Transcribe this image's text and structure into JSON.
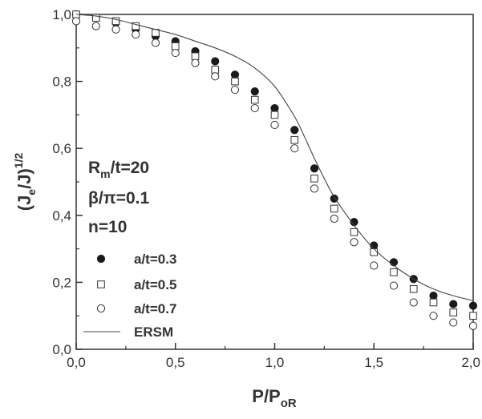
{
  "chart_data": {
    "type": "scatter",
    "xlim": [
      0,
      2
    ],
    "ylim": [
      0,
      1
    ],
    "grid": false,
    "legend_placement": "bottom-left",
    "x_ticks": [
      "0,0",
      "0,5",
      "1,0",
      "1,5",
      "2,0"
    ],
    "y_ticks": [
      "0,0",
      "0,2",
      "0,4",
      "0,6",
      "0,8",
      "1,0"
    ],
    "xlabel": {
      "main": "P/P",
      "sub": "oR"
    },
    "ylabel": {
      "main": "(J",
      "sub1": "e",
      "mid": "/J)",
      "sup": "1/2"
    },
    "annotations": {
      "line1": {
        "main": "R",
        "sub": "m",
        "rest": "/t=20"
      },
      "line2": "β/π=0.1",
      "line3": "n=10"
    },
    "series": [
      {
        "name": "a/t=0.3",
        "marker": "filled-circle",
        "x": [
          0.0,
          0.1,
          0.2,
          0.3,
          0.4,
          0.5,
          0.6,
          0.7,
          0.8,
          0.9,
          1.0,
          1.1,
          1.2,
          1.3,
          1.4,
          1.5,
          1.6,
          1.7,
          1.8,
          1.9,
          2.0
        ],
        "y": [
          1.0,
          0.99,
          0.975,
          0.955,
          0.935,
          0.92,
          0.89,
          0.86,
          0.82,
          0.77,
          0.72,
          0.655,
          0.54,
          0.45,
          0.38,
          0.31,
          0.26,
          0.21,
          0.16,
          0.135,
          0.13
        ]
      },
      {
        "name": "a/t=0.5",
        "marker": "open-square",
        "x": [
          0.0,
          0.1,
          0.2,
          0.3,
          0.4,
          0.5,
          0.6,
          0.7,
          0.8,
          0.9,
          1.0,
          1.1,
          1.2,
          1.3,
          1.4,
          1.5,
          1.6,
          1.7,
          1.8,
          1.9,
          2.0
        ],
        "y": [
          1.0,
          0.99,
          0.98,
          0.965,
          0.945,
          0.905,
          0.875,
          0.835,
          0.8,
          0.745,
          0.7,
          0.625,
          0.51,
          0.42,
          0.35,
          0.29,
          0.23,
          0.18,
          0.14,
          0.11,
          0.1
        ]
      },
      {
        "name": "a/t=0.7",
        "marker": "open-circle",
        "x": [
          0.0,
          0.1,
          0.2,
          0.3,
          0.4,
          0.5,
          0.6,
          0.7,
          0.8,
          0.9,
          1.0,
          1.1,
          1.2,
          1.3,
          1.4,
          1.5,
          1.6,
          1.7,
          1.8,
          1.9,
          2.0
        ],
        "y": [
          0.98,
          0.965,
          0.955,
          0.94,
          0.915,
          0.885,
          0.855,
          0.815,
          0.775,
          0.72,
          0.67,
          0.6,
          0.48,
          0.39,
          0.32,
          0.25,
          0.19,
          0.14,
          0.1,
          0.08,
          0.07
        ]
      },
      {
        "name": "ERSM",
        "marker": "line",
        "x": [
          0.0,
          0.1,
          0.2,
          0.3,
          0.4,
          0.5,
          0.6,
          0.7,
          0.8,
          0.9,
          1.0,
          1.1,
          1.15,
          1.2,
          1.25,
          1.3,
          1.4,
          1.5,
          1.6,
          1.7,
          1.8,
          1.9,
          2.0
        ],
        "y": [
          1.0,
          0.995,
          0.985,
          0.97,
          0.955,
          0.94,
          0.92,
          0.9,
          0.875,
          0.84,
          0.785,
          0.695,
          0.635,
          0.57,
          0.51,
          0.455,
          0.37,
          0.3,
          0.25,
          0.21,
          0.18,
          0.16,
          0.145
        ]
      }
    ]
  }
}
